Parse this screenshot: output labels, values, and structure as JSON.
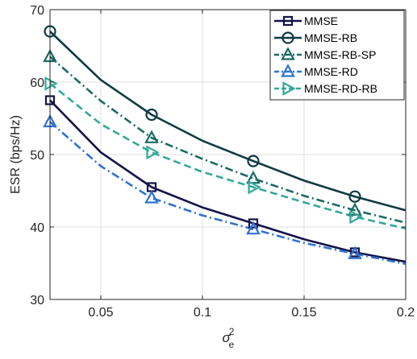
{
  "chart_data": {
    "type": "line",
    "title": "",
    "xlabel": "σ",
    "xlabel_sub": "e",
    "xlabel_sup": "2",
    "ylabel": "ESR (bps/Hz)",
    "xlim": [
      0.025,
      0.2
    ],
    "ylim": [
      30,
      70
    ],
    "xticks": [
      0.05,
      0.1,
      0.15,
      0.2
    ],
    "xtick_labels": [
      "0.05",
      "0.1",
      "0.15",
      "0.2"
    ],
    "yticks": [
      30,
      40,
      50,
      60,
      70
    ],
    "ytick_labels": [
      "30",
      "40",
      "50",
      "60",
      "70"
    ],
    "grid": true,
    "legend_position": "top-right",
    "x": [
      0.025,
      0.05,
      0.075,
      0.1,
      0.125,
      0.15,
      0.175,
      0.2
    ],
    "series": [
      {
        "name": "MMSE",
        "values": [
          57.5,
          50.3,
          45.5,
          42.7,
          40.5,
          38.3,
          36.5,
          35.2
        ],
        "color": "#14134a",
        "marker": "square",
        "line_style": "solid",
        "marker_x": [
          0.025,
          0.075,
          0.125,
          0.175
        ]
      },
      {
        "name": "MMSE-RB",
        "values": [
          67.0,
          60.3,
          55.5,
          51.9,
          49.1,
          46.4,
          44.2,
          42.3
        ],
        "color": "#0e3b43",
        "marker": "circle",
        "line_style": "solid",
        "marker_x": [
          0.025,
          0.075,
          0.125,
          0.175
        ]
      },
      {
        "name": "MMSE-RB-SP",
        "values": [
          63.5,
          57.4,
          52.3,
          49.4,
          46.7,
          44.3,
          42.3,
          40.6
        ],
        "color": "#1a6b65",
        "marker": "triangle-up",
        "line_style": "dashdot",
        "marker_x": [
          0.025,
          0.075,
          0.125,
          0.175
        ]
      },
      {
        "name": "MMSE-RD",
        "values": [
          54.5,
          48.4,
          44.0,
          41.6,
          39.7,
          37.8,
          36.3,
          34.9
        ],
        "color": "#2f73d0",
        "marker": "triangle-up",
        "line_style": "dashdot",
        "marker_x": [
          0.025,
          0.075,
          0.125,
          0.175
        ]
      },
      {
        "name": "MMSE-RD-RB",
        "values": [
          59.8,
          54.2,
          50.3,
          47.6,
          45.5,
          43.4,
          41.4,
          39.8
        ],
        "color": "#33a89a",
        "marker": "triangle-right",
        "line_style": "dashed",
        "marker_x": [
          0.025,
          0.075,
          0.125,
          0.175
        ]
      }
    ]
  }
}
